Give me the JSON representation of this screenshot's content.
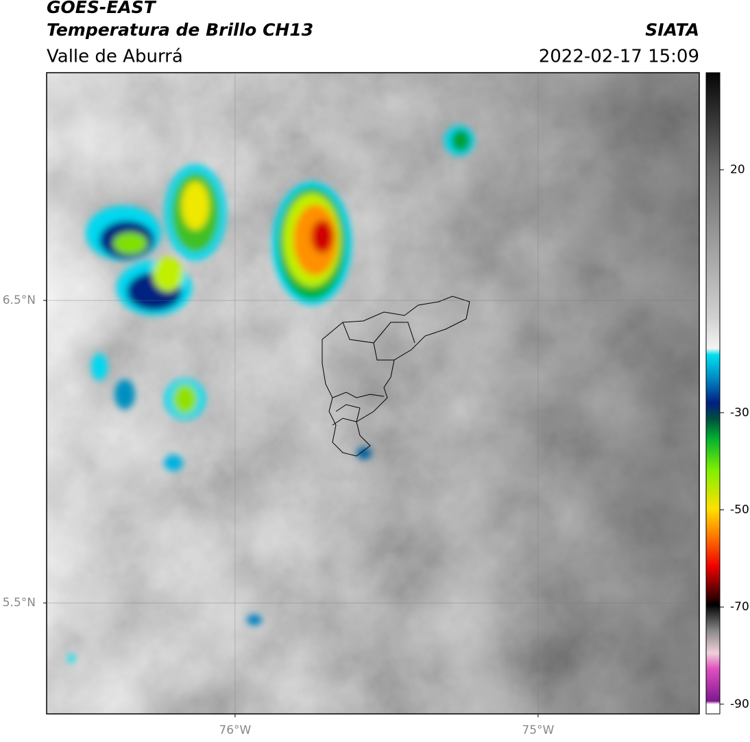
{
  "header": {
    "title": "GOES-EAST",
    "subtitle": "Temperatura de Brillo CH13",
    "region": "Valle de Aburrá",
    "source": "SIATA",
    "datetime": "2022-02-17 15:09"
  },
  "map": {
    "xlim": [
      -76.622,
      -74.468
    ],
    "ylim": [
      5.133,
      7.253
    ],
    "xticks": [
      {
        "value": -76,
        "label": "76°W"
      },
      {
        "value": -75,
        "label": "75°W"
      }
    ],
    "yticks": [
      {
        "value": 6.5,
        "label": "6.5°N"
      },
      {
        "value": 5.5,
        "label": "5.5°N"
      }
    ],
    "grid": true
  },
  "colorbar": {
    "lim": [
      -92,
      40
    ],
    "ticks": [
      20,
      -30,
      -50,
      -70,
      -90
    ]
  }
}
